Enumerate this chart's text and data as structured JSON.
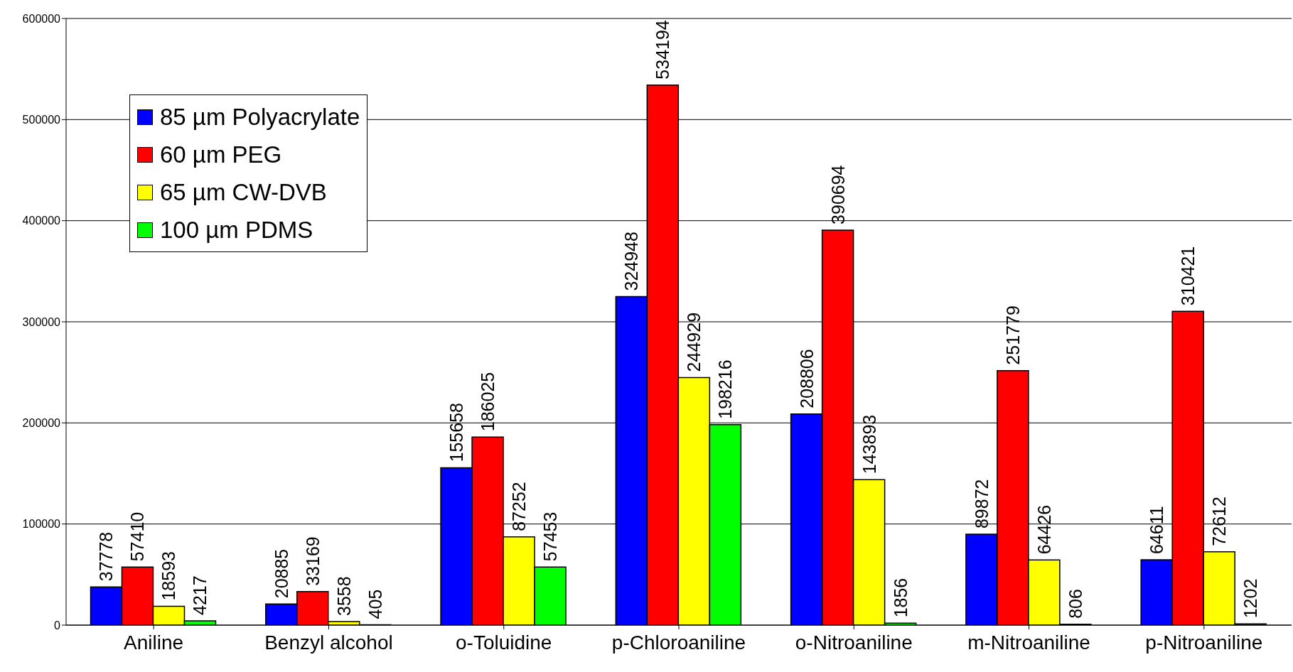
{
  "chart_data": {
    "type": "bar",
    "categories": [
      "Aniline",
      "Benzyl alcohol",
      "o-Toluidine",
      "p-Chloroaniline",
      "o-Nitroaniline",
      "m-Nitroaniline",
      "p-Nitroaniline"
    ],
    "series": [
      {
        "name": "85 µm Polyacrylate",
        "color": "#0000ff",
        "values": [
          37778,
          20885,
          155658,
          324948,
          208806,
          89872,
          64611
        ]
      },
      {
        "name": "60 µm PEG",
        "color": "#ff0000",
        "values": [
          57410,
          33169,
          186025,
          534194,
          390694,
          251779,
          310421
        ]
      },
      {
        "name": "65 µm CW-DVB",
        "color": "#ffff00",
        "values": [
          18593,
          3558,
          87252,
          244929,
          143893,
          64426,
          72612
        ]
      },
      {
        "name": "100 µm PDMS",
        "color": "#00ff00",
        "values": [
          4217,
          405,
          57453,
          198216,
          1856,
          806,
          1202
        ]
      }
    ],
    "ylim": [
      0,
      600000
    ],
    "yticks": [
      0,
      100000,
      200000,
      300000,
      400000,
      500000,
      600000
    ],
    "grid": "y",
    "legend": "top left",
    "data_labels": true
  }
}
